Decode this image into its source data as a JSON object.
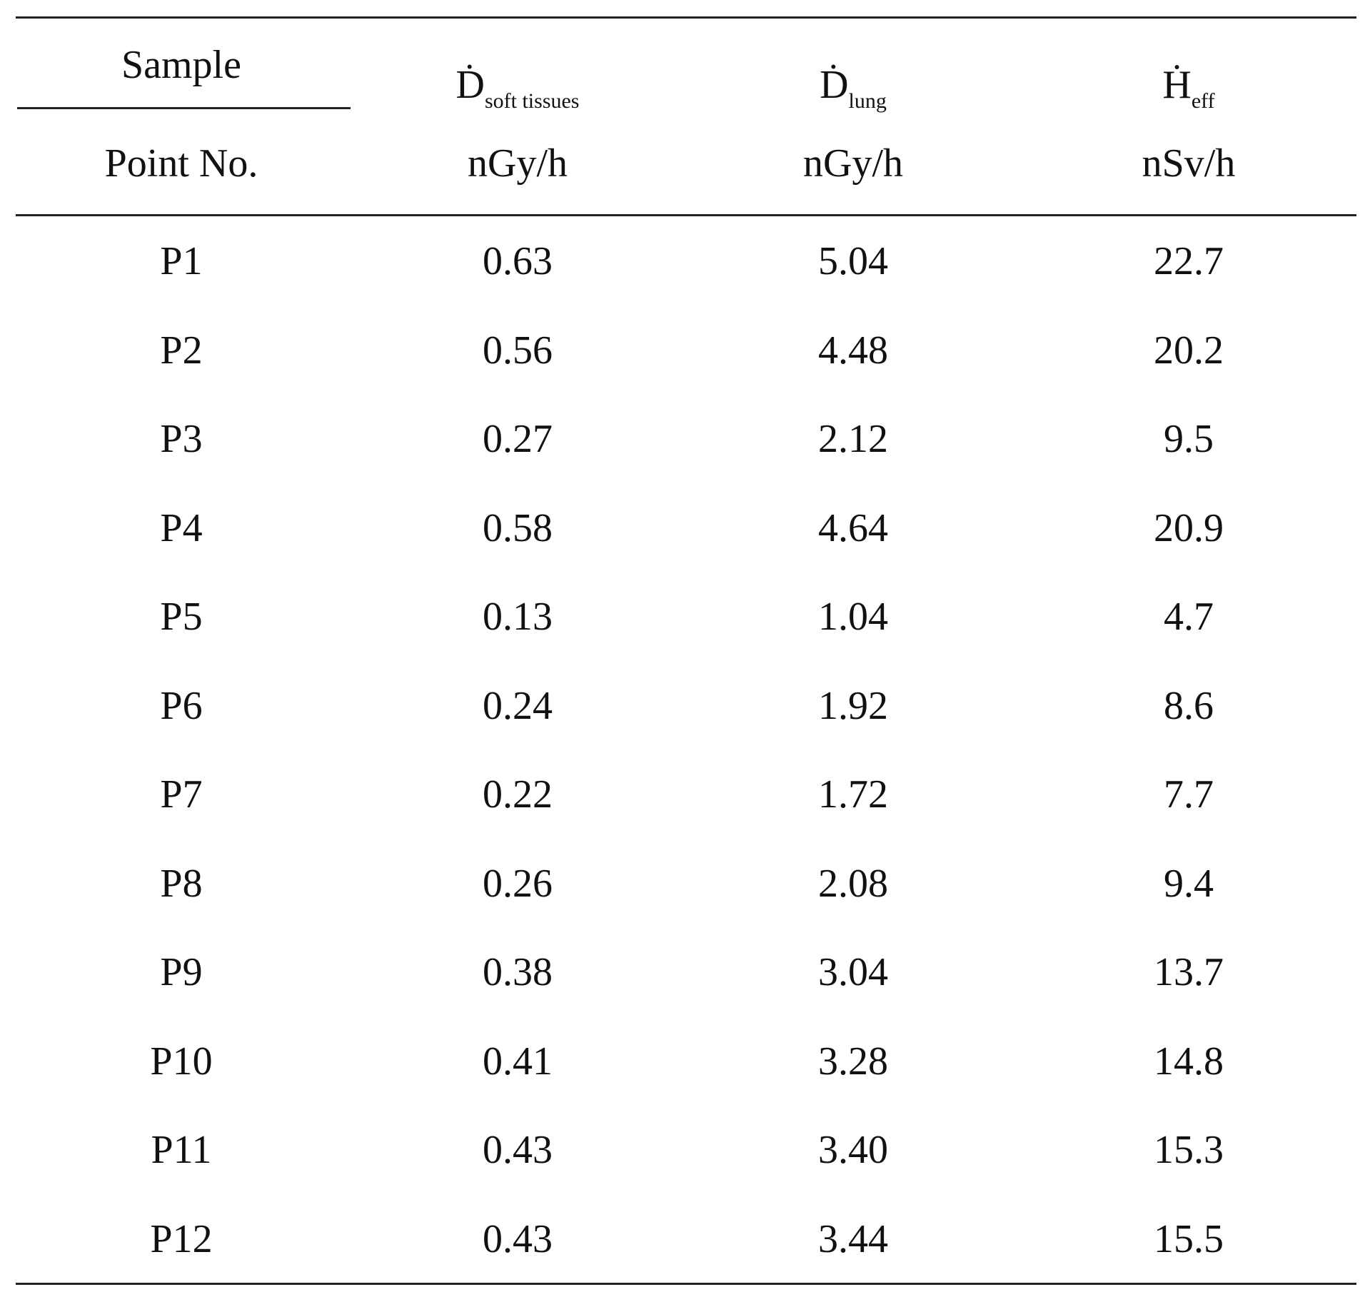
{
  "table": {
    "header": {
      "sample": "Sample",
      "point_no": "Point No.",
      "columns": [
        {
          "symbol": "Ḋ",
          "subscript": "soft tissues",
          "unit": "nGy/h"
        },
        {
          "symbol": "Ḋ",
          "subscript": "lung",
          "unit": "nGy/h"
        },
        {
          "symbol": "Ḣ",
          "subscript": "eff",
          "unit": "nSv/h"
        }
      ]
    },
    "rows": [
      [
        "P1",
        "0.63",
        "5.04",
        "22.7"
      ],
      [
        "P2",
        "0.56",
        "4.48",
        "20.2"
      ],
      [
        "P3",
        "0.27",
        "2.12",
        "9.5"
      ],
      [
        "P4",
        "0.58",
        "4.64",
        "20.9"
      ],
      [
        "P5",
        "0.13",
        "1.04",
        "4.7"
      ],
      [
        "P6",
        "0.24",
        "1.92",
        "8.6"
      ],
      [
        "P7",
        "0.22",
        "1.72",
        "7.7"
      ],
      [
        "P8",
        "0.26",
        "2.08",
        "9.4"
      ],
      [
        "P9",
        "0.38",
        "3.04",
        "13.7"
      ],
      [
        "P10",
        "0.41",
        "3.28",
        "14.8"
      ],
      [
        "P11",
        "0.43",
        "3.40",
        "15.3"
      ],
      [
        "P12",
        "0.43",
        "3.44",
        "15.5"
      ]
    ]
  }
}
